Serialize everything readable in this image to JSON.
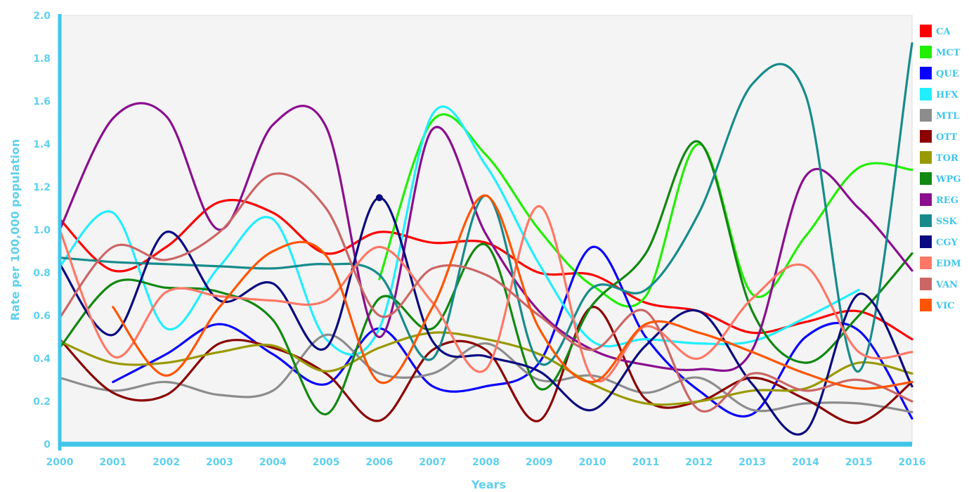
{
  "chart_data": {
    "type": "line",
    "title": "",
    "xlabel": "Years",
    "ylabel": "Rate per 100,000 population",
    "x": [
      2000,
      2001,
      2002,
      2003,
      2004,
      2005,
      2006,
      2007,
      2008,
      2009,
      2010,
      2011,
      2012,
      2013,
      2014,
      2015,
      2016
    ],
    "x_tick_labels": [
      "2000",
      "2001",
      "2002",
      "2003",
      "2004",
      "2005",
      "2006",
      "2007",
      "2008",
      "2009",
      "2010",
      "2011",
      "2012",
      "2013",
      "2014",
      "2015",
      "2016"
    ],
    "ylim": [
      0,
      2.0
    ],
    "y_ticks": [
      0,
      0.2,
      0.4,
      0.6,
      0.8,
      1.0,
      1.2,
      1.4,
      1.6,
      1.8,
      2.0
    ],
    "y_tick_labels": [
      "0",
      "0.2",
      "0.4",
      "0.6",
      "0.8",
      "1.0",
      "1.2",
      "1.4",
      "1.6",
      "1.8",
      "2.0"
    ],
    "grid": false,
    "legend_position": "right",
    "axis_color": "#3fc6ea",
    "plot_background": "#f4f4f4",
    "series": [
      {
        "name": "CA",
        "color": "#ff0000",
        "values": [
          1.05,
          0.81,
          0.92,
          1.13,
          1.08,
          0.89,
          0.99,
          0.94,
          0.94,
          0.8,
          0.79,
          0.66,
          0.62,
          0.52,
          0.57,
          0.62,
          0.49
        ]
      },
      {
        "name": "MCT",
        "color": "#22ee00",
        "values": [
          null,
          null,
          null,
          null,
          null,
          null,
          0.77,
          1.51,
          1.35,
          1.0,
          0.74,
          0.69,
          1.4,
          0.7,
          0.97,
          1.29,
          1.28
        ]
      },
      {
        "name": "QUE",
        "color": "#0a00ff",
        "values": [
          null,
          0.29,
          0.42,
          0.56,
          0.42,
          0.28,
          0.54,
          0.27,
          0.27,
          0.38,
          0.92,
          0.5,
          0.25,
          0.14,
          0.5,
          0.53,
          0.12
        ]
      },
      {
        "name": "HFX",
        "color": "#22eeff",
        "values": [
          0.83,
          1.08,
          0.54,
          0.83,
          1.05,
          0.49,
          0.54,
          1.54,
          1.3,
          0.84,
          0.48,
          0.49,
          0.47,
          0.48,
          0.59,
          0.72,
          null
        ]
      },
      {
        "name": "MTL",
        "color": "#8c8c8c",
        "values": [
          0.31,
          0.25,
          0.29,
          0.23,
          0.25,
          0.51,
          0.33,
          0.33,
          0.47,
          0.3,
          0.32,
          0.24,
          0.31,
          0.16,
          0.19,
          0.19,
          0.15
        ]
      },
      {
        "name": "OTT",
        "color": "#8b0000",
        "values": [
          0.49,
          0.24,
          0.23,
          0.47,
          0.45,
          0.33,
          0.11,
          0.44,
          0.44,
          0.11,
          0.64,
          0.21,
          0.2,
          0.31,
          0.21,
          0.1,
          0.29
        ]
      },
      {
        "name": "TOR",
        "color": "#999900",
        "values": [
          0.48,
          0.38,
          0.38,
          0.43,
          0.46,
          0.34,
          0.45,
          0.52,
          0.49,
          0.42,
          0.28,
          0.19,
          0.2,
          0.25,
          0.26,
          0.38,
          0.33
        ]
      },
      {
        "name": "WPG",
        "color": "#118811",
        "values": [
          0.45,
          0.75,
          0.73,
          0.71,
          0.58,
          0.14,
          0.68,
          0.54,
          0.93,
          0.26,
          0.65,
          0.89,
          1.41,
          0.62,
          0.38,
          0.6,
          0.89
        ]
      },
      {
        "name": "REG",
        "color": "#8a0e8e",
        "values": [
          1.0,
          1.52,
          1.53,
          1.0,
          1.49,
          1.48,
          0.5,
          1.47,
          0.98,
          0.62,
          0.44,
          0.37,
          0.35,
          0.44,
          1.25,
          1.1,
          0.81
        ]
      },
      {
        "name": "SSK",
        "color": "#178b8b",
        "values": [
          0.87,
          0.85,
          0.84,
          0.83,
          0.82,
          0.84,
          0.79,
          0.4,
          1.16,
          0.38,
          0.73,
          0.72,
          1.08,
          1.68,
          1.63,
          0.34,
          1.87
        ]
      },
      {
        "name": "CGY",
        "color": "#0a0a80",
        "values": [
          0.84,
          0.51,
          0.99,
          0.67,
          0.75,
          0.45,
          1.15,
          0.48,
          0.41,
          0.34,
          0.16,
          0.46,
          0.62,
          0.28,
          0.06,
          0.7,
          0.27
        ]
      },
      {
        "name": "EDM",
        "color": "#ff7766",
        "values": [
          1.0,
          0.41,
          0.71,
          0.69,
          0.67,
          0.67,
          0.92,
          0.66,
          0.35,
          1.11,
          0.31,
          0.55,
          0.4,
          0.68,
          0.83,
          0.43,
          0.43
        ]
      },
      {
        "name": "VAN",
        "color": "#cc6666",
        "values": [
          0.59,
          0.92,
          0.86,
          0.99,
          1.26,
          1.1,
          0.6,
          0.82,
          0.79,
          0.6,
          0.44,
          0.62,
          0.16,
          0.33,
          0.25,
          0.3,
          0.2
        ]
      },
      {
        "name": "VIC",
        "color": "#ff5500",
        "values": [
          null,
          0.64,
          0.32,
          0.64,
          0.9,
          0.88,
          0.29,
          0.64,
          1.16,
          0.54,
          0.29,
          0.56,
          0.52,
          0.43,
          0.33,
          0.26,
          0.29
        ]
      }
    ],
    "markers": [
      {
        "series": "CGY",
        "x": 2006,
        "y": 1.15
      }
    ]
  }
}
